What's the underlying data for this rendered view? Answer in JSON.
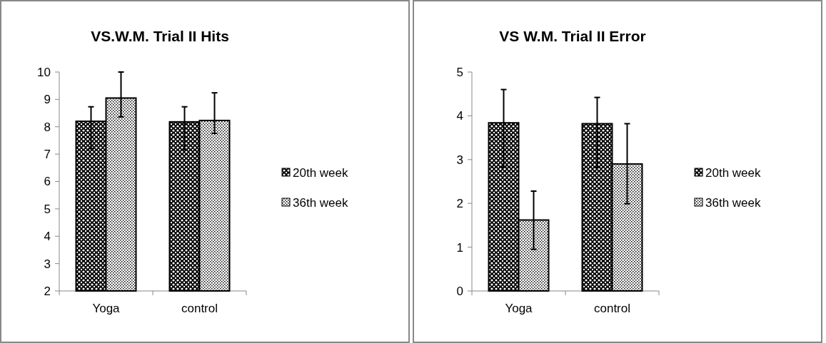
{
  "chart_data": [
    {
      "type": "bar",
      "title": "VS.W.M. Trial II Hits",
      "categories": [
        "Yoga",
        "control"
      ],
      "series": [
        {
          "name": "20th week",
          "color": "#000000",
          "values": [
            8.2,
            8.18
          ],
          "errors": [
            [
              7.2,
              8.73
            ],
            [
              7.17,
              8.73
            ]
          ]
        },
        {
          "name": "36th week",
          "color": "#000000",
          "values": [
            9.05,
            8.23
          ],
          "errors": [
            [
              8.36,
              10.0
            ],
            [
              7.76,
              9.24
            ]
          ]
        }
      ],
      "ylim": [
        2,
        10
      ],
      "yticks": [
        2,
        3,
        4,
        5,
        6,
        7,
        8,
        9,
        10
      ],
      "grid": false,
      "legend": "right"
    },
    {
      "type": "bar",
      "title": "VS W.M. Trial II Error",
      "categories": [
        "Yoga",
        "control"
      ],
      "series": [
        {
          "name": "20th week",
          "color": "#000000",
          "values": [
            3.84,
            3.82
          ],
          "errors": [
            [
              2.83,
              4.6
            ],
            [
              2.82,
              4.42
            ]
          ]
        },
        {
          "name": "36th week",
          "color": "#000000",
          "values": [
            1.62,
            2.9
          ],
          "errors": [
            [
              0.95,
              2.28
            ],
            [
              1.99,
              3.82
            ]
          ]
        }
      ],
      "ylim": [
        0,
        5
      ],
      "yticks": [
        0,
        1,
        2,
        3,
        4,
        5
      ],
      "grid": false,
      "legend": "right"
    }
  ]
}
